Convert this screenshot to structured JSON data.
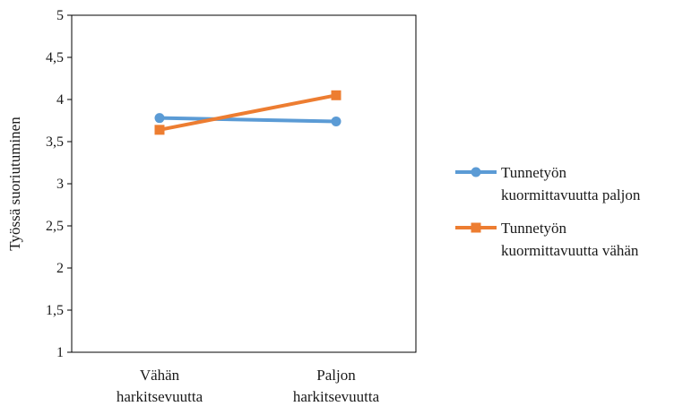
{
  "chart_data": {
    "type": "line",
    "title": "",
    "xlabel": "",
    "ylabel": "Työssä suoriutuminen",
    "ylim": [
      1,
      5
    ],
    "y_ticks": [
      "1",
      "1,5",
      "2",
      "2,5",
      "3",
      "3,5",
      "4",
      "4,5",
      "5"
    ],
    "categories": [
      [
        "Vähän",
        "harkitsevuutta"
      ],
      [
        "Paljon",
        "harkitsevuutta"
      ]
    ],
    "series": [
      {
        "name_lines": [
          "Tunnetyön",
          "kuormittavuutta paljon"
        ],
        "values": [
          3.78,
          3.74
        ],
        "color": "#5b9bd5",
        "marker": "circle"
      },
      {
        "name_lines": [
          "Tunnetyön",
          "kuormittavuutta vähän"
        ],
        "values": [
          3.64,
          4.05
        ],
        "color": "#ed7d31",
        "marker": "square"
      }
    ],
    "grid": false,
    "legend_position": "right"
  }
}
